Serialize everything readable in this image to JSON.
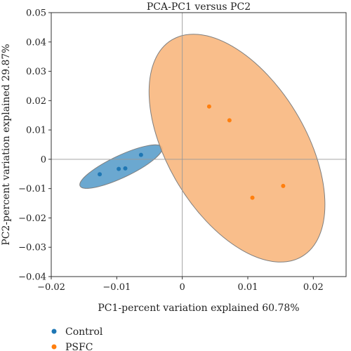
{
  "chart_data": {
    "type": "scatter",
    "title": "PCA-PC1 versus PC2",
    "xlabel": "PC1-percent variation explained 60.78%",
    "ylabel": "PC2-percent variation explained 29.87%",
    "xlim": [
      -0.02,
      0.025
    ],
    "ylim": [
      -0.04,
      0.05
    ],
    "xticks": [
      "−0.02",
      "−0.01",
      "0",
      "0.01",
      "0.02"
    ],
    "xtick_values": [
      -0.02,
      -0.01,
      0,
      0.01,
      0.02
    ],
    "yticks": [
      "−0.04",
      "−0.03",
      "−0.02",
      "−0.01",
      "0",
      "0.01",
      "0.02",
      "0.03",
      "0.04",
      "0.05"
    ],
    "ytick_values": [
      -0.04,
      -0.03,
      -0.02,
      -0.01,
      0,
      0.01,
      0.02,
      0.03,
      0.04,
      0.05
    ],
    "zero_lines": true,
    "grid": false,
    "legend_position": "below-left",
    "series": [
      {
        "name": "Control",
        "color": "#1f77b4",
        "points": [
          {
            "x": -0.0126,
            "y": -0.0051
          },
          {
            "x": -0.0097,
            "y": -0.0033
          },
          {
            "x": -0.0087,
            "y": -0.0031
          },
          {
            "x": -0.0063,
            "y": 0.0015
          }
        ],
        "ellipse": {
          "cx": -0.00935,
          "cy": -0.0025,
          "x1": -0.0156,
          "y1": -0.0091,
          "x2": -0.0031,
          "y2": 0.0041,
          "minor_end": {
            "x": -0.00855,
            "y": -0.0058
          }
        },
        "ellipse_fill": "#5b9ecb"
      },
      {
        "name": "PSFC",
        "color": "#ff7f0e",
        "points": [
          {
            "x": 0.0041,
            "y": 0.018
          },
          {
            "x": 0.0072,
            "y": 0.0133
          },
          {
            "x": 0.0107,
            "y": -0.0131
          },
          {
            "x": 0.0154,
            "y": -0.0091
          }
        ],
        "ellipse": {
          "cx": 0.00835,
          "cy": 0.0038,
          "x1": -0.0016,
          "y1": 0.0407,
          "x2": 0.0183,
          "y2": -0.0331,
          "minor_end": {
            "x": 0.0184,
            "y": 0.0107
          }
        },
        "ellipse_fill": "#f8b77e"
      }
    ]
  }
}
